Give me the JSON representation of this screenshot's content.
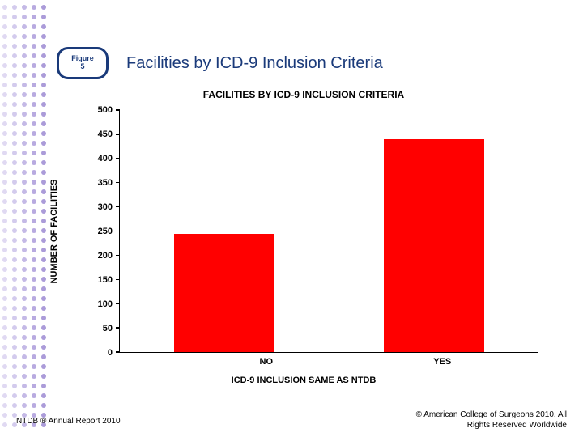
{
  "decorative_dots": {
    "columns": 5,
    "rows": 44,
    "colors": [
      "#e0d9f2",
      "#d3cbed",
      "#c4b9e6",
      "#b8aae0",
      "#ab9bd9"
    ],
    "dot_size": 6,
    "col_spacing": 12
  },
  "figure_badge": {
    "line1": "Figure",
    "line2": "5",
    "border_color": "#1a3a7a"
  },
  "title": "Facilities by ICD-9 Inclusion Criteria",
  "title_color": "#1a3a7a",
  "chart": {
    "type": "bar",
    "title": "FACILITIES BY ICD-9 INCLUSION CRITERIA",
    "y_label": "NUMBER OF FACILITIES",
    "x_label": "ICD-9 INCLUSION SAME AS NTDB",
    "ylim": [
      0,
      500
    ],
    "ytick_step": 50,
    "yticks": [
      0,
      50,
      100,
      150,
      200,
      250,
      300,
      350,
      400,
      450,
      500
    ],
    "categories": [
      "NO",
      "YES"
    ],
    "values": [
      245,
      440
    ],
    "bar_color": "#ff0000",
    "bar_width_pct": 24,
    "bar_positions_pct": [
      25,
      75
    ],
    "axis_color": "#000000",
    "background_color": "#ffffff",
    "tick_fontsize": 11,
    "label_fontsize": 11,
    "title_fontsize": 12
  },
  "footer": {
    "left": "NTDB ® Annual Report 2010",
    "right_line1": "© American College of Surgeons 2010. All",
    "right_line2": "Rights Reserved Worldwide"
  }
}
